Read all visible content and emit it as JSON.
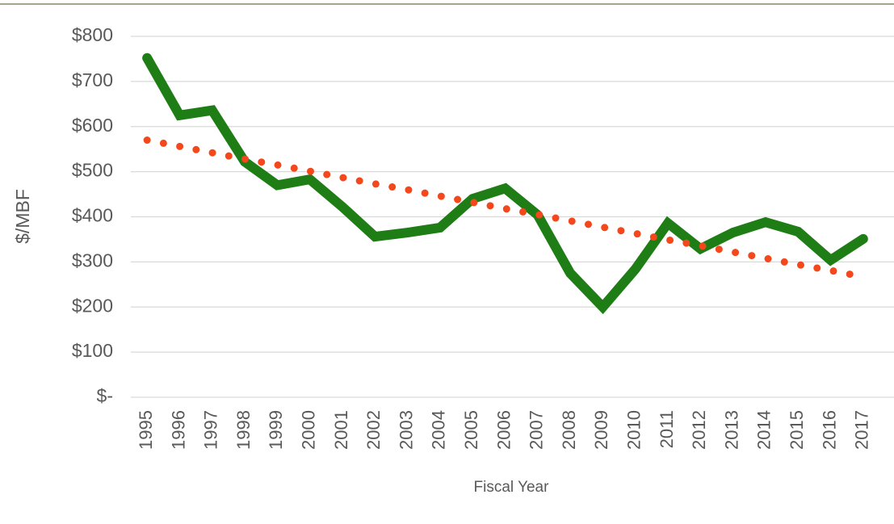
{
  "chart_data": {
    "type": "line",
    "x_label": "Fiscal Year",
    "y_label": "$/MBF",
    "categories": [
      "1995",
      "1996",
      "1997",
      "1998",
      "1999",
      "2000",
      "2001",
      "2002",
      "2003",
      "2004",
      "2005",
      "2006",
      "2007",
      "2008",
      "2009",
      "2010",
      "2011",
      "2012",
      "2013",
      "2014",
      "2015",
      "2016",
      "2017"
    ],
    "series": [
      {
        "color": "#1e7d14",
        "line_style": "solid",
        "values": [
          752,
          625,
          636,
          522,
          470,
          483,
          422,
          356,
          365,
          376,
          440,
          463,
          404,
          275,
          200,
          284,
          386,
          329,
          365,
          388,
          367,
          304,
          351
        ]
      },
      {
        "color": "#f4471b",
        "line_style": "dotted",
        "values": [
          570,
          556,
          542,
          528,
          515,
          501,
          487,
          473,
          460,
          446,
          432,
          418,
          405,
          391,
          377,
          363,
          349,
          336,
          322,
          308,
          294,
          281,
          267
        ]
      }
    ],
    "ylim": [
      0,
      800
    ],
    "yticks": [
      {
        "value": 0,
        "label": "$-"
      },
      {
        "value": 100,
        "label": "$100"
      },
      {
        "value": 200,
        "label": "$200"
      },
      {
        "value": 300,
        "label": "$300"
      },
      {
        "value": 400,
        "label": "$400"
      },
      {
        "value": 500,
        "label": "$500"
      },
      {
        "value": 600,
        "label": "$600"
      },
      {
        "value": 700,
        "label": "$700"
      },
      {
        "value": 800,
        "label": "$800"
      }
    ],
    "grid": true
  }
}
